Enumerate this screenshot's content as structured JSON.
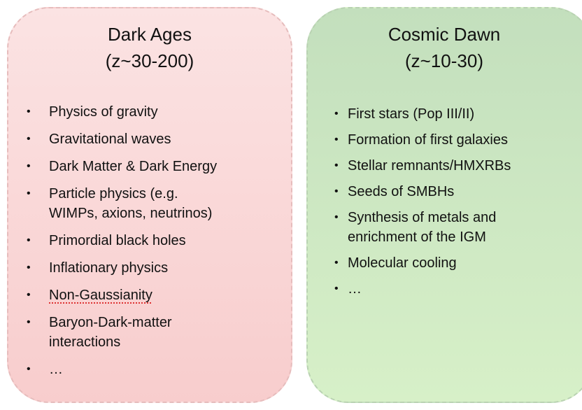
{
  "panels": [
    {
      "title": "Dark Ages",
      "subtitle": "(z~30-200)",
      "items": [
        [
          "Physics of gravity"
        ],
        [
          "Gravitational waves"
        ],
        [
          "Dark Matter & Dark Energy"
        ],
        [
          "Particle physics (e.g.",
          "WIMPs, axions, neutrinos)"
        ],
        [
          "Primordial black holes"
        ],
        [
          "Inflationary physics"
        ],
        [
          "Non-Gaussianity"
        ],
        [
          "Baryon-Dark-matter",
          "interactions"
        ],
        [
          "…"
        ]
      ]
    },
    {
      "title": "Cosmic Dawn",
      "subtitle": "(z~10-30)",
      "items": [
        [
          "First stars (Pop III/II)"
        ],
        [
          "Formation of first galaxies"
        ],
        [
          "Stellar remnants/HMXRBs"
        ],
        [
          "Seeds of SMBHs"
        ],
        [
          "Synthesis of metals and",
          "enrichment of the IGM"
        ],
        [
          "Molecular cooling"
        ],
        [
          "…"
        ]
      ]
    }
  ]
}
